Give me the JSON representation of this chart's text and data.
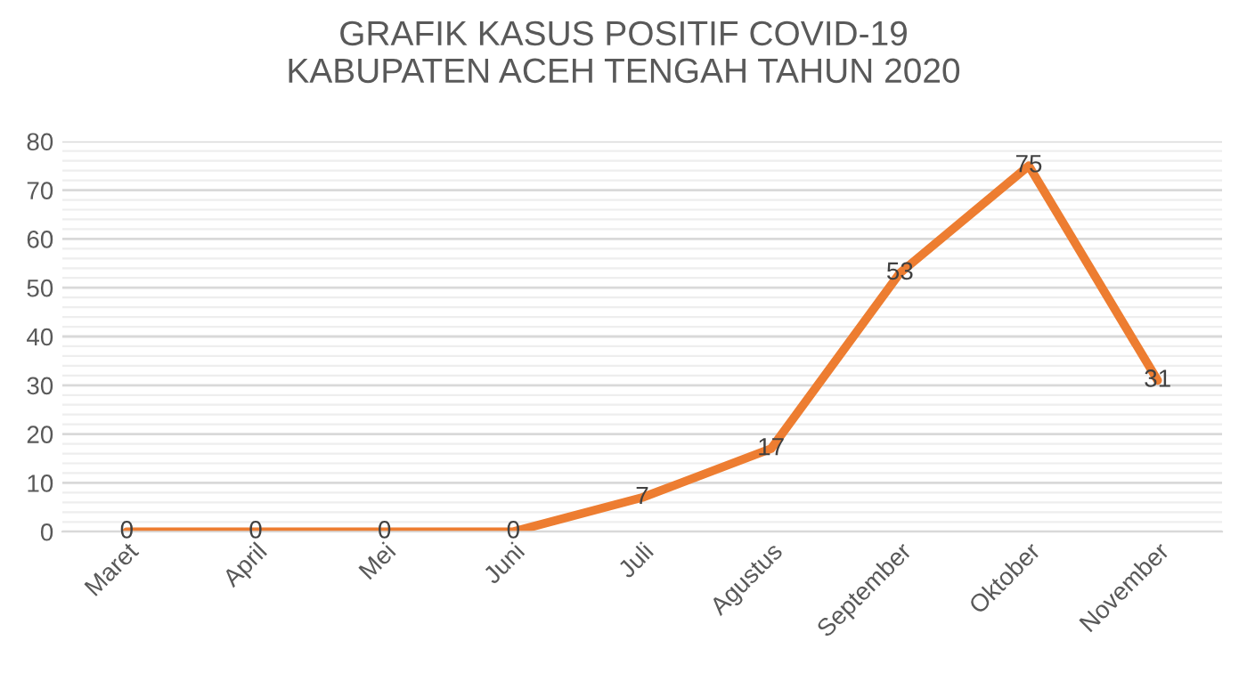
{
  "chart_data": {
    "type": "line",
    "title": "GRAFIK KASUS POSITIF COVID-19\nKABUPATEN ACEH TENGAH TAHUN 2020",
    "categories": [
      "Maret",
      "April",
      "Mei",
      "Juni",
      "Juli",
      "Agustus",
      "September",
      "Oktober",
      "November"
    ],
    "series": [
      {
        "color": "#ed7d31",
        "values": [
          0,
          0,
          0,
          0,
          7,
          17,
          53,
          75,
          31
        ]
      }
    ],
    "ylim": [
      0,
      80
    ],
    "yticks": [
      0,
      10,
      20,
      30,
      40,
      50,
      60,
      70,
      80
    ],
    "grid": "y",
    "data_labels": true,
    "marker": "none",
    "line_style": "solid"
  }
}
